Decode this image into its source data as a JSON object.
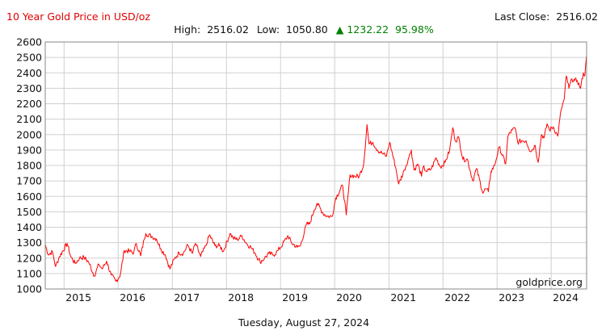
{
  "chart_data": {
    "type": "line",
    "title": "10 Year Gold Price in USD/oz",
    "stats": {
      "high_label": "High:",
      "high": "2516.02",
      "low_label": "Low:",
      "low": "1050.80",
      "change": "1232.22",
      "change_pct": "95.98%",
      "last_close_label": "Last Close:",
      "last_close": "2516.02"
    },
    "watermark": "goldprice.org",
    "date_caption": "Tuesday, August 27, 2024",
    "xlabel": "",
    "ylabel": "",
    "x_range": [
      "2014-08-27",
      "2024-08-27"
    ],
    "ylim": [
      1000,
      2600
    ],
    "y_ticks": [
      1000,
      1100,
      1200,
      1300,
      1400,
      1500,
      1600,
      1700,
      1800,
      1900,
      2000,
      2100,
      2200,
      2300,
      2400,
      2500,
      2600
    ],
    "x_ticks": [
      "2015",
      "2016",
      "2017",
      "2018",
      "2019",
      "2020",
      "2021",
      "2022",
      "2023",
      "2024"
    ],
    "grid": true,
    "colors": {
      "line": "#ff0000",
      "title": "#e00000",
      "change": "#008000",
      "grid": "#d0d0d0",
      "axis": "#888888"
    },
    "series": [
      {
        "x": [
          "2014-08-27",
          "2014-09-15",
          "2014-10-15",
          "2014-11-05",
          "2014-12-01",
          "2015-01-22",
          "2015-02-15",
          "2015-03-17",
          "2015-04-15",
          "2015-05-15",
          "2015-06-15",
          "2015-07-24",
          "2015-08-24",
          "2015-09-15",
          "2015-10-15",
          "2015-11-15",
          "2015-12-17",
          "2016-01-15",
          "2016-02-11",
          "2016-03-15",
          "2016-04-15",
          "2016-05-02",
          "2016-06-01",
          "2016-06-24",
          "2016-07-06",
          "2016-08-15",
          "2016-09-15",
          "2016-10-15",
          "2016-11-15",
          "2016-12-15",
          "2017-01-15",
          "2017-02-15",
          "2017-03-15",
          "2017-04-15",
          "2017-05-15",
          "2017-06-06",
          "2017-07-10",
          "2017-08-15",
          "2017-09-08",
          "2017-10-15",
          "2017-11-15",
          "2017-12-12",
          "2018-01-25",
          "2018-02-15",
          "2018-03-15",
          "2018-04-15",
          "2018-05-15",
          "2018-06-15",
          "2018-07-15",
          "2018-08-16",
          "2018-09-15",
          "2018-10-15",
          "2018-11-15",
          "2018-12-15",
          "2019-01-15",
          "2019-02-20",
          "2019-03-15",
          "2019-04-23",
          "2019-05-15",
          "2019-06-25",
          "2019-07-15",
          "2019-08-15",
          "2019-09-04",
          "2019-10-15",
          "2019-11-15",
          "2019-12-15",
          "2020-01-08",
          "2020-02-24",
          "2020-03-19",
          "2020-04-14",
          "2020-05-15",
          "2020-06-15",
          "2020-07-15",
          "2020-08-06",
          "2020-08-20",
          "2020-09-15",
          "2020-10-15",
          "2020-11-15",
          "2020-12-15",
          "2021-01-06",
          "2021-02-15",
          "2021-03-08",
          "2021-04-15",
          "2021-05-15",
          "2021-06-01",
          "2021-06-20",
          "2021-07-15",
          "2021-08-09",
          "2021-08-20",
          "2021-09-15",
          "2021-10-15",
          "2021-11-15",
          "2021-12-15",
          "2022-01-15",
          "2022-02-15",
          "2022-03-08",
          "2022-03-25",
          "2022-04-18",
          "2022-05-15",
          "2022-06-15",
          "2022-07-21",
          "2022-08-15",
          "2022-09-28",
          "2022-10-15",
          "2022-11-03",
          "2022-11-20",
          "2022-12-15",
          "2023-01-15",
          "2023-02-28",
          "2023-03-15",
          "2023-04-13",
          "2023-05-04",
          "2023-05-20",
          "2023-06-15",
          "2023-07-15",
          "2023-08-15",
          "2023-09-15",
          "2023-10-05",
          "2023-10-27",
          "2023-11-15",
          "2023-12-04",
          "2023-12-20",
          "2024-01-15",
          "2024-02-14",
          "2024-03-08",
          "2024-03-29",
          "2024-04-12",
          "2024-04-30",
          "2024-05-20",
          "2024-06-07",
          "2024-06-25",
          "2024-07-17",
          "2024-08-05",
          "2024-08-15",
          "2024-08-27"
        ],
        "values": [
          1288,
          1225,
          1240,
          1145,
          1210,
          1295,
          1210,
          1165,
          1200,
          1205,
          1175,
          1085,
          1160,
          1130,
          1180,
          1090,
          1050,
          1090,
          1250,
          1245,
          1235,
          1295,
          1215,
          1320,
          1360,
          1340,
          1325,
          1260,
          1220,
          1130,
          1195,
          1235,
          1230,
          1285,
          1230,
          1295,
          1210,
          1280,
          1350,
          1280,
          1280,
          1245,
          1360,
          1330,
          1320,
          1345,
          1295,
          1270,
          1230,
          1175,
          1200,
          1230,
          1220,
          1250,
          1290,
          1345,
          1300,
          1270,
          1280,
          1420,
          1420,
          1510,
          1555,
          1490,
          1470,
          1470,
          1590,
          1670,
          1480,
          1740,
          1730,
          1730,
          1810,
          2065,
          1940,
          1950,
          1900,
          1880,
          1860,
          1950,
          1790,
          1680,
          1770,
          1850,
          1900,
          1770,
          1810,
          1730,
          1790,
          1760,
          1780,
          1850,
          1790,
          1820,
          1900,
          2045,
          1960,
          1980,
          1840,
          1840,
          1700,
          1780,
          1620,
          1650,
          1630,
          1760,
          1800,
          1920,
          1810,
          1990,
          2030,
          2040,
          1950,
          1960,
          1960,
          1890,
          1930,
          1820,
          2000,
          1980,
          2070,
          2030,
          2050,
          1990,
          2160,
          2230,
          2380,
          2300,
          2360,
          2350,
          2350,
          2300,
          2400,
          2380,
          2516
        ]
      }
    ]
  }
}
